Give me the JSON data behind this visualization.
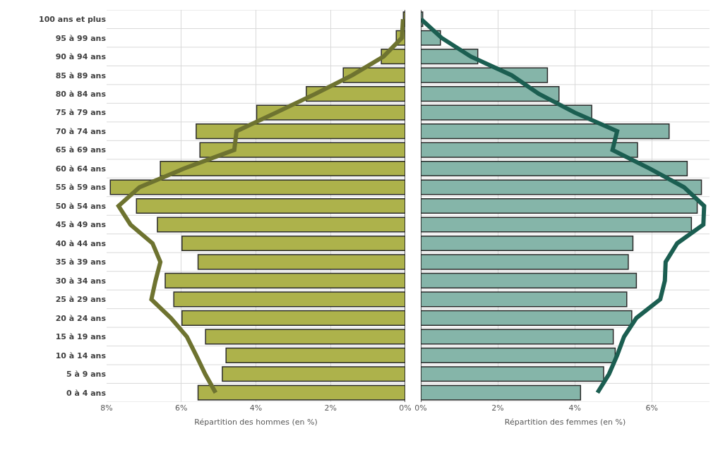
{
  "chart_data": [
    {
      "type": "bar",
      "orientation": "horizontal",
      "xlabel": "Répartition des hommes (en %)",
      "categories": [
        "100 ans et plus",
        "95 à 99 ans",
        "90 à 94 ans",
        "85 à 89 ans",
        "80 à 84 ans",
        "75 à 79 ans",
        "70 à 74 ans",
        "65 à 69 ans",
        "60 à 64 ans",
        "55 à 59 ans",
        "50 à 54 ans",
        "45 à 49 ans",
        "40 à 44 ans",
        "35 à 39 ans",
        "30 à 34 ans",
        "25 à 29 ans",
        "20 à 24 ans",
        "15 à 19 ans",
        "10 à 14 ans",
        "5 à 9 ans",
        "0 à 4 ans"
      ],
      "series": [
        {
          "color": "#adb24b",
          "values": [
            0.05,
            0.24,
            0.64,
            1.66,
            2.65,
            3.98,
            5.6,
            5.5,
            6.56,
            7.9,
            7.2,
            6.64,
            5.98,
            5.55,
            6.43,
            6.2,
            5.98,
            5.35,
            4.8,
            4.9,
            5.55
          ]
        },
        {
          "type": "line",
          "color": "#6e7330",
          "values": [
            0.06,
            0.09,
            0.58,
            1.42,
            2.41,
            3.46,
            4.52,
            4.58,
            5.93,
            7.12,
            7.68,
            7.36,
            6.77,
            6.56,
            6.69,
            6.8,
            6.28,
            5.85,
            5.6,
            5.36,
            5.08
          ]
        }
      ],
      "xlim": [
        8,
        0
      ],
      "xticks": [
        {
          "value": 8,
          "label": "8%"
        },
        {
          "value": 6,
          "label": "6%"
        },
        {
          "value": 4,
          "label": "4%"
        },
        {
          "value": 2,
          "label": "2%"
        },
        {
          "value": 0,
          "label": "0%"
        }
      ],
      "grid": true
    },
    {
      "type": "bar",
      "orientation": "horizontal",
      "xlabel": "Répartition des femmes (en %)",
      "categories": [
        null,
        null,
        null,
        null,
        null,
        null,
        null,
        null,
        null,
        null,
        null,
        null,
        null,
        null,
        null,
        null,
        null,
        null,
        null,
        null,
        null
      ],
      "series": [
        {
          "color": "#85b5a9",
          "values": [
            0.05,
            0.51,
            1.48,
            3.29,
            3.59,
            4.44,
            6.45,
            5.63,
            6.92,
            7.29,
            7.18,
            7.03,
            5.51,
            5.39,
            5.6,
            5.35,
            5.48,
            5.0,
            5.05,
            4.75,
            4.15
          ]
        },
        {
          "type": "line",
          "color": "#1b5e51",
          "values": [
            0.01,
            0.54,
            1.3,
            2.36,
            3.07,
            4.0,
            5.1,
            4.98,
            5.95,
            6.84,
            7.36,
            7.34,
            6.66,
            6.36,
            6.34,
            6.22,
            5.6,
            5.28,
            5.1,
            4.89,
            4.59
          ]
        }
      ],
      "xlim": [
        0,
        7.5
      ],
      "xticks": [
        {
          "value": 0,
          "label": "0%"
        },
        {
          "value": 2,
          "label": "2%"
        },
        {
          "value": 4,
          "label": "4%"
        },
        {
          "value": 6,
          "label": "6%"
        }
      ],
      "grid": true,
      "tick_labels": "x"
    }
  ]
}
